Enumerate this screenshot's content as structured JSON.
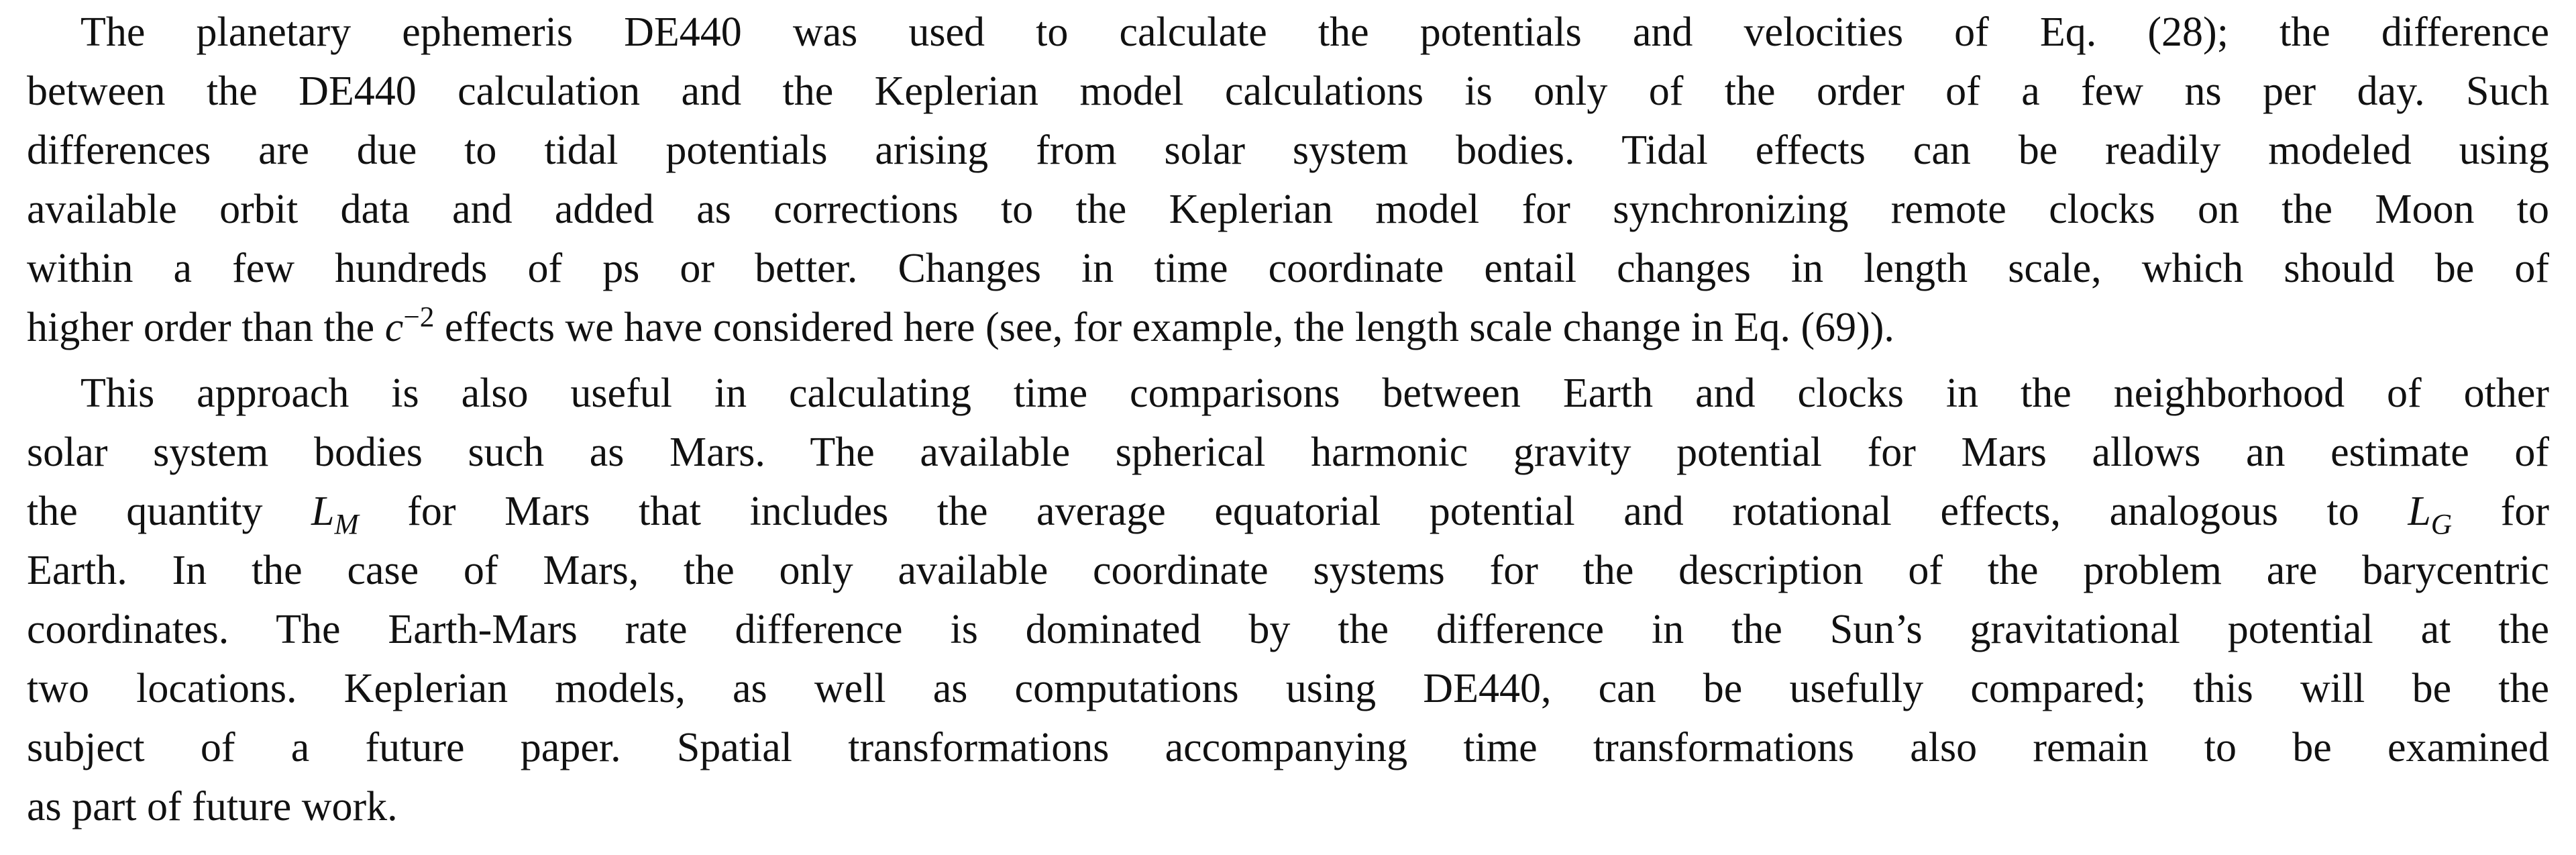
{
  "paragraphs": [
    {
      "lines": [
        [
          "The planetary ephemeris DE440 was used to calculate the potentials and velocities of Eq. (28); the difference"
        ],
        [
          "between the DE440 calculation and the Keplerian model calculations is only of the order of a few ns per day. Such"
        ],
        [
          "differences are due to tidal potentials arising from solar system bodies. Tidal effects can be readily modeled using"
        ],
        [
          "available orbit data and added as corrections to the Keplerian model for synchronizing remote clocks on the Moon to"
        ],
        [
          "within a few hundreds of ps or better. Changes in time coordinate entail changes in length scale, which should be of"
        ],
        [
          "higher order than the ",
          {
            "var": "c",
            "sup": "−2"
          },
          " effects we have considered here (see, for example, the length scale change in Eq. (69))."
        ]
      ]
    },
    {
      "lines": [
        [
          "This approach is also useful in calculating time comparisons between Earth and clocks in the neighborhood of other"
        ],
        [
          "solar system bodies such as Mars. The available spherical harmonic gravity potential for Mars allows an estimate of"
        ],
        [
          "the quantity ",
          {
            "var": "L",
            "sub": "M"
          },
          " for Mars that includes the average equatorial potential and rotational effects, analogous to ",
          {
            "var": "L",
            "sub": "G"
          },
          " for"
        ],
        [
          "Earth. In the case of Mars, the only available coordinate systems for the description of the problem are barycentric"
        ],
        [
          "coordinates. The Earth-Mars rate difference is dominated by the difference in the Sun’s gravitational potential at the"
        ],
        [
          "two locations. Keplerian models, as well as computations using DE440, can be usefully compared; this will be the"
        ],
        [
          "subject of a future paper. Spatial transformations accompanying time transformations also remain to be examined"
        ],
        [
          "as part of future work."
        ]
      ]
    }
  ]
}
